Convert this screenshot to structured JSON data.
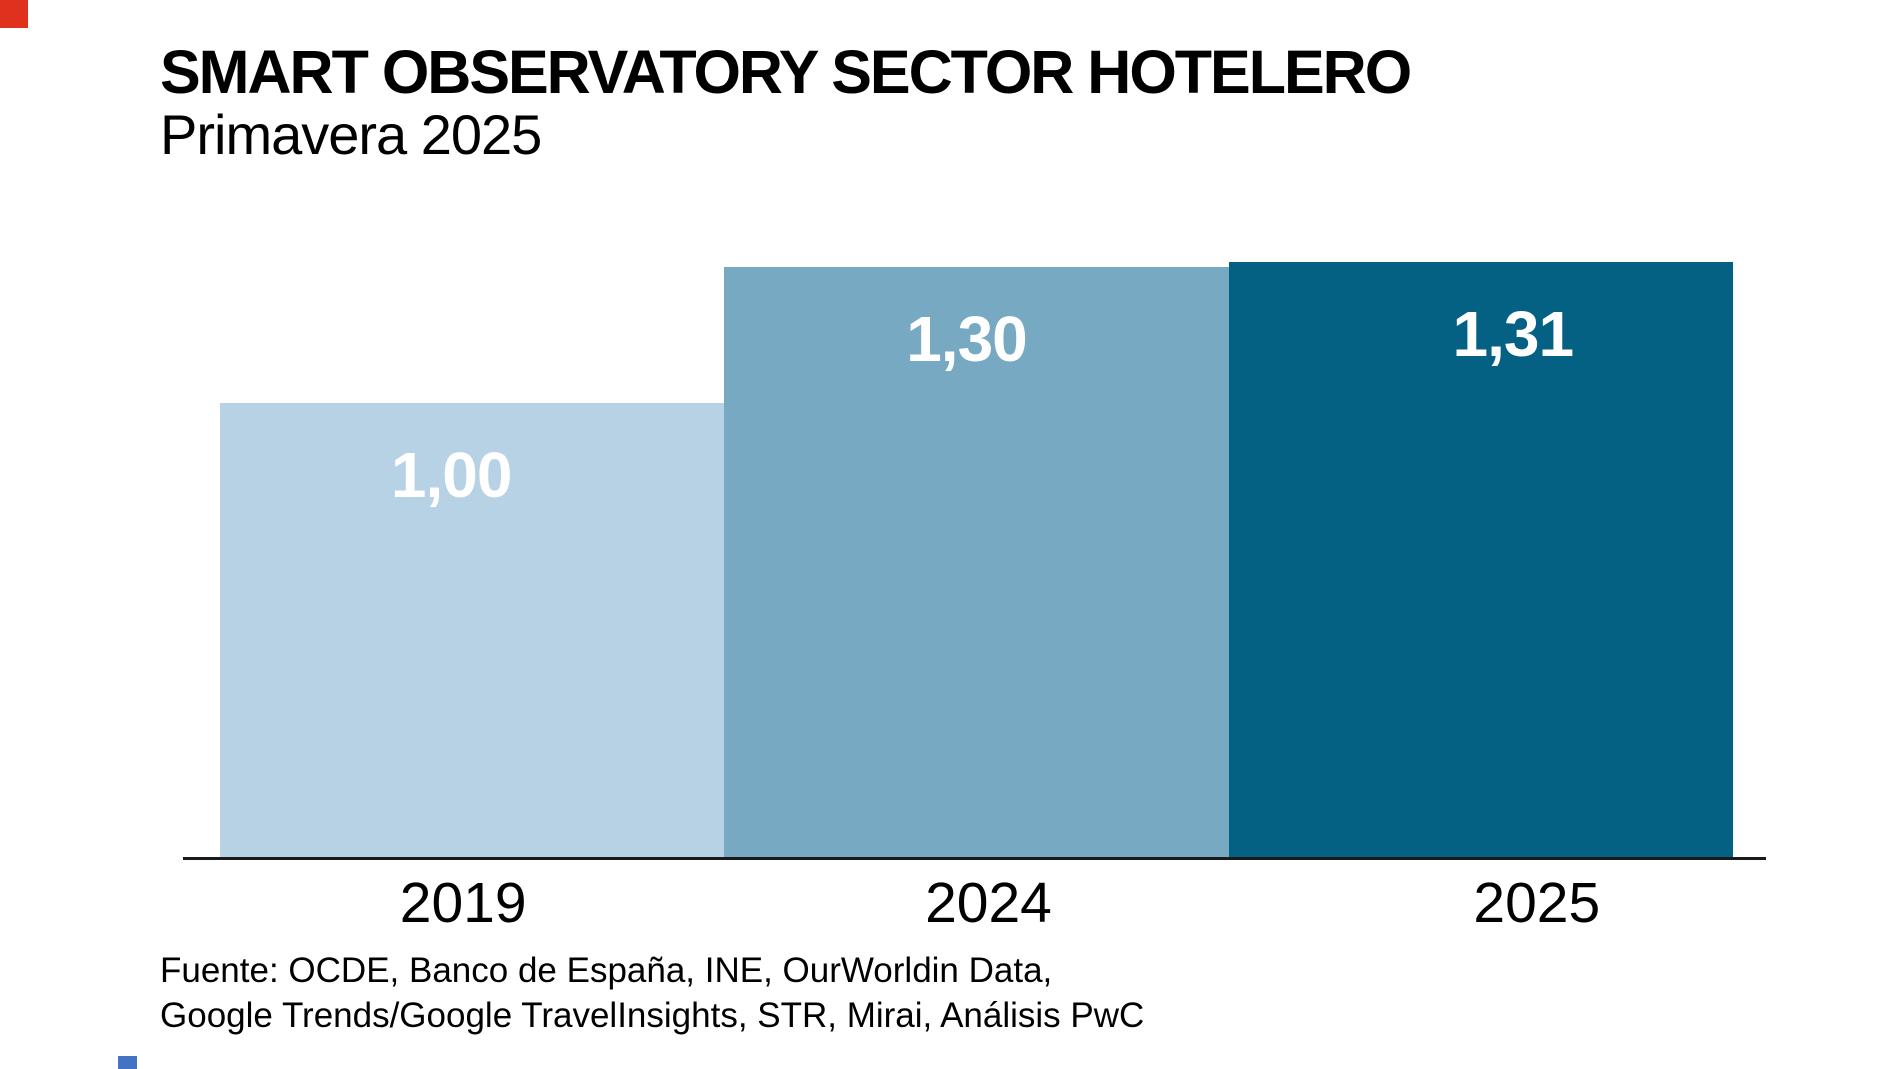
{
  "header": {
    "title": "SMART OBSERVATORY SECTOR HOTELERO",
    "subtitle": "Primavera 2025"
  },
  "footer": {
    "line1": "Fuente: OCDE, Banco de España, INE, OurWorldin Data,",
    "line2": "Google Trends/Google TravelInsights, STR, Mirai, Análisis PwC"
  },
  "colors": {
    "bar_2019": "#b6d2e4",
    "bar_2024": "#77a9c3",
    "bar_2025": "#056184",
    "axis_line": "#1a1a1a",
    "value_label_text": "#ffffff",
    "corner_mark_red": "#e0301e",
    "bottom_mark_blue": "#4472c4",
    "text": "#000000"
  },
  "chart_data": {
    "type": "bar",
    "title": "SMART OBSERVATORY SECTOR HOTELERO",
    "subtitle": "Primavera 2025",
    "categories": [
      "2019",
      "2024",
      "2025"
    ],
    "values": [
      1.0,
      1.3,
      1.31
    ],
    "value_labels": [
      "1,00",
      "1,30",
      "1,31"
    ],
    "bar_colors": [
      "#b6d2e4",
      "#77a9c3",
      "#056184"
    ],
    "xlabel": "",
    "ylabel": "",
    "ylim": [
      0,
      1.31
    ],
    "grid": false,
    "legend": false,
    "value_label_position": "inside-top",
    "source": "Fuente: OCDE, Banco de España, INE, OurWorldin Data, Google Trends/Google TravelInsights, STR, Mirai, Análisis PwC"
  }
}
